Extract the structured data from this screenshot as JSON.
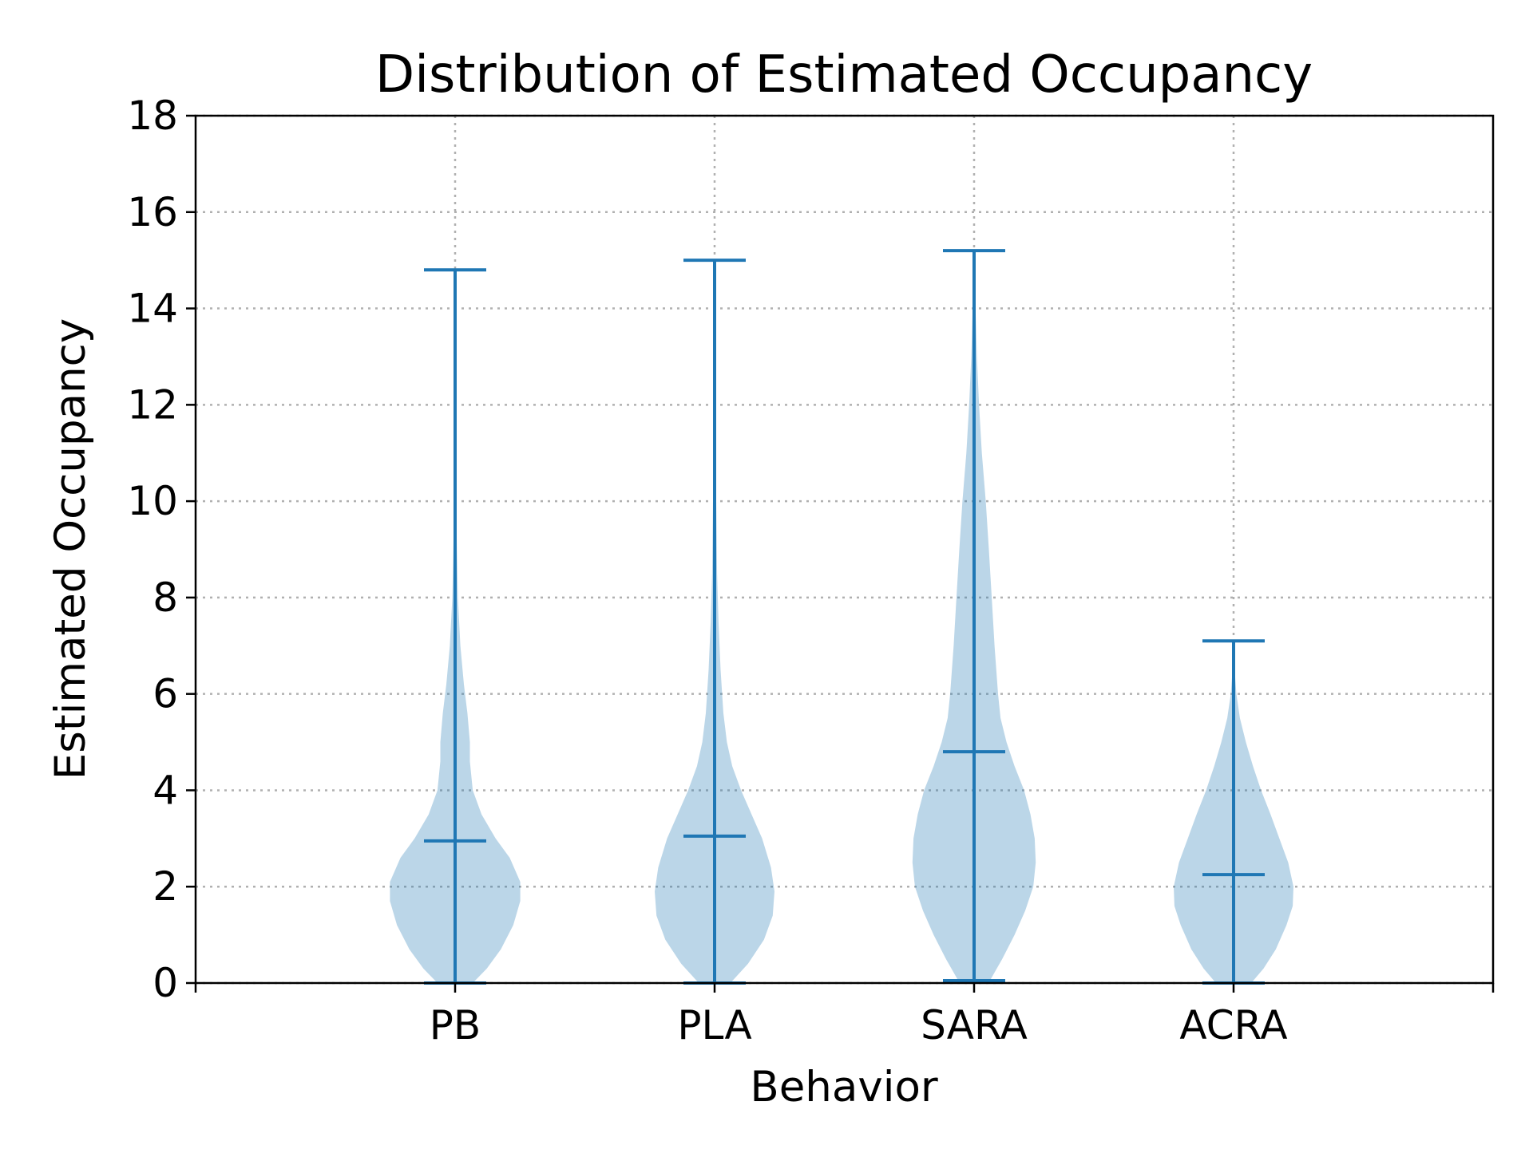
{
  "chart_data": {
    "type": "violin",
    "title": "Distribution of Estimated Occupancy",
    "xlabel": "Behavior",
    "ylabel": "Estimated Occupancy",
    "categories": [
      "PB",
      "PLA",
      "SARA",
      "ACRA"
    ],
    "ylim": [
      0,
      18
    ],
    "yticks": [
      0,
      2,
      4,
      6,
      8,
      10,
      12,
      14,
      16,
      18
    ],
    "grid": true,
    "colors": {
      "line": "#1f77b4",
      "body": "#1f77b4",
      "body_opacity": 0.3
    },
    "series": [
      {
        "category": "PB",
        "min": 0.0,
        "max": 14.8,
        "median": 2.95,
        "density": [
          [
            0.0,
            0.5
          ],
          [
            0.3,
            0.9
          ],
          [
            0.7,
            1.3
          ],
          [
            1.2,
            1.65
          ],
          [
            1.7,
            1.85
          ],
          [
            2.1,
            1.85
          ],
          [
            2.6,
            1.55
          ],
          [
            3.0,
            1.15
          ],
          [
            3.5,
            0.75
          ],
          [
            4.0,
            0.5
          ],
          [
            4.6,
            0.42
          ],
          [
            5.0,
            0.42
          ],
          [
            5.6,
            0.35
          ],
          [
            6.2,
            0.25
          ],
          [
            7.0,
            0.15
          ],
          [
            8.0,
            0.08
          ],
          [
            9.0,
            0.05
          ],
          [
            10.0,
            0.03
          ],
          [
            11.5,
            0.02
          ],
          [
            13.0,
            0.015
          ],
          [
            14.8,
            0.01
          ]
        ]
      },
      {
        "category": "PLA",
        "min": 0.0,
        "max": 15.0,
        "median": 3.05,
        "density": [
          [
            0.0,
            0.45
          ],
          [
            0.4,
            0.95
          ],
          [
            0.9,
            1.4
          ],
          [
            1.4,
            1.65
          ],
          [
            1.9,
            1.7
          ],
          [
            2.4,
            1.6
          ],
          [
            3.0,
            1.35
          ],
          [
            3.5,
            1.05
          ],
          [
            4.0,
            0.75
          ],
          [
            4.5,
            0.5
          ],
          [
            5.0,
            0.35
          ],
          [
            5.6,
            0.25
          ],
          [
            6.5,
            0.17
          ],
          [
            7.5,
            0.11
          ],
          [
            8.5,
            0.07
          ],
          [
            10.0,
            0.045
          ],
          [
            11.5,
            0.03
          ],
          [
            13.0,
            0.02
          ],
          [
            15.0,
            0.01
          ]
        ]
      },
      {
        "category": "SARA",
        "min": 0.05,
        "max": 15.2,
        "median": 4.8,
        "density": [
          [
            0.05,
            0.45
          ],
          [
            0.5,
            0.8
          ],
          [
            1.0,
            1.15
          ],
          [
            1.5,
            1.45
          ],
          [
            2.0,
            1.68
          ],
          [
            2.5,
            1.75
          ],
          [
            3.0,
            1.72
          ],
          [
            3.5,
            1.6
          ],
          [
            4.0,
            1.42
          ],
          [
            4.5,
            1.15
          ],
          [
            5.0,
            0.92
          ],
          [
            5.5,
            0.75
          ],
          [
            6.0,
            0.68
          ],
          [
            7.0,
            0.58
          ],
          [
            8.0,
            0.5
          ],
          [
            9.0,
            0.42
          ],
          [
            10.0,
            0.33
          ],
          [
            11.0,
            0.22
          ],
          [
            12.0,
            0.14
          ],
          [
            13.0,
            0.08
          ],
          [
            14.0,
            0.04
          ],
          [
            15.2,
            0.01
          ]
        ]
      },
      {
        "category": "ACRA",
        "min": 0.0,
        "max": 7.1,
        "median": 2.25,
        "density": [
          [
            0.0,
            0.5
          ],
          [
            0.3,
            0.85
          ],
          [
            0.7,
            1.2
          ],
          [
            1.2,
            1.5
          ],
          [
            1.6,
            1.68
          ],
          [
            2.0,
            1.7
          ],
          [
            2.5,
            1.55
          ],
          [
            3.0,
            1.3
          ],
          [
            3.5,
            1.05
          ],
          [
            4.0,
            0.78
          ],
          [
            4.5,
            0.55
          ],
          [
            5.0,
            0.35
          ],
          [
            5.5,
            0.18
          ],
          [
            6.0,
            0.08
          ],
          [
            6.5,
            0.03
          ],
          [
            7.1,
            0.01
          ]
        ]
      }
    ]
  }
}
